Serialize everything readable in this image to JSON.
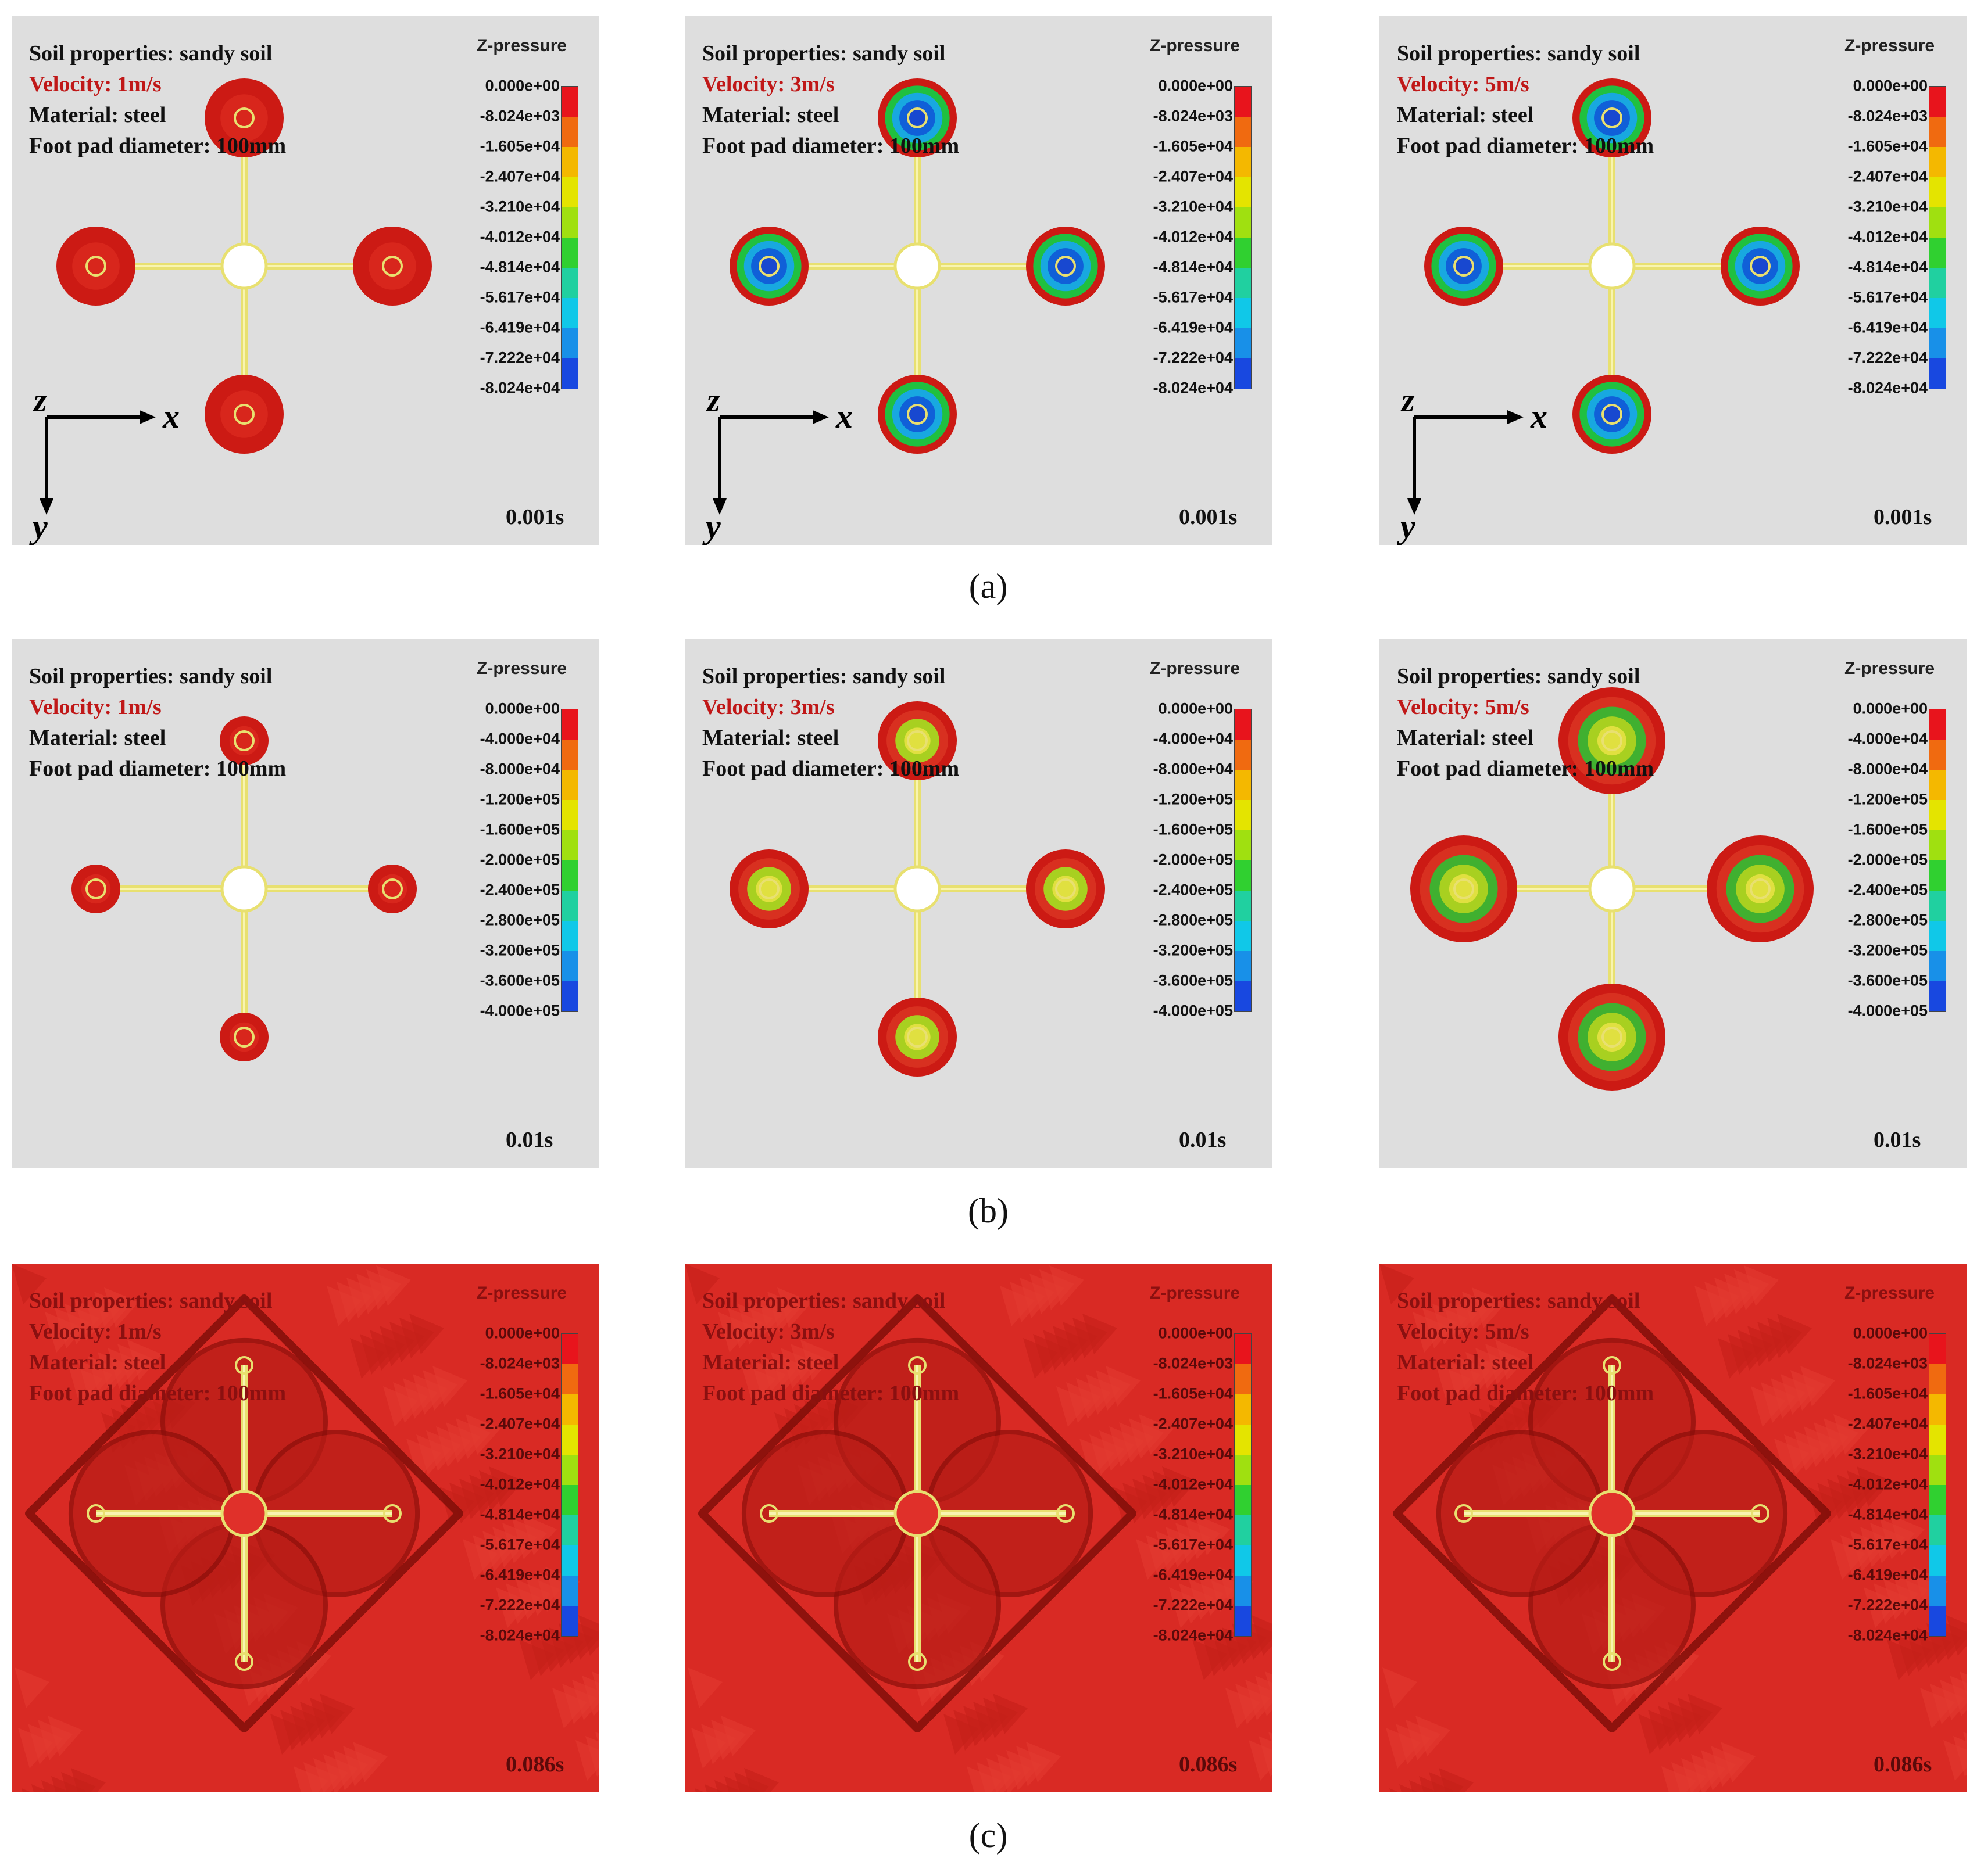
{
  "rows": [
    {
      "caption": "(a)",
      "caption_letter": "a",
      "panels": [
        {
          "soil": "Soil properties:  sandy soil",
          "velocity": "Velocity:  1m/s",
          "material": "Material:  steel",
          "diameter": "Foot pad diameter:  100mm",
          "time": "0.001s",
          "pad_style": "red",
          "has_axes": true
        },
        {
          "soil": "Soil properties:  sandy soil",
          "velocity": "Velocity:  3m/s",
          "material": "Material:  steel",
          "diameter": "Foot pad diameter:  100mm",
          "time": "0.001s",
          "pad_style": "blue",
          "has_axes": true
        },
        {
          "soil": "Soil properties:  sandy soil",
          "velocity": "Velocity:  5m/s",
          "material": "Material:  steel",
          "diameter": "Foot pad diameter:  100mm",
          "time": "0.001s",
          "pad_style": "blue",
          "has_axes": true
        }
      ],
      "legend": {
        "title": "Z-pressure",
        "labels": [
          "0.000e+00",
          "-8.024e+03",
          "-1.605e+04",
          "-2.407e+04",
          "-3.210e+04",
          "-4.012e+04",
          "-4.814e+04",
          "-5.617e+04",
          "-6.419e+04",
          "-7.222e+04",
          "-8.024e+04"
        ]
      }
    },
    {
      "caption": "(b)",
      "caption_letter": "b",
      "panels": [
        {
          "soil": "Soil properties:  sandy soil",
          "velocity": "Velocity:  1m/s",
          "material": "Material:  steel",
          "diameter": "Foot pad diameter:  100mm",
          "time": "0.01s",
          "pad_style": "red-small",
          "has_axes": false
        },
        {
          "soil": "Soil properties:  sandy soil",
          "velocity": "Velocity:  3m/s",
          "material": "Material:  steel",
          "diameter": "Foot pad diameter:  100mm",
          "time": "0.01s",
          "pad_style": "red-green",
          "has_axes": false
        },
        {
          "soil": "Soil properties:  sandy soil",
          "velocity": "Velocity:  5m/s",
          "material": "Material:  steel",
          "diameter": "Foot pad diameter:  100mm",
          "time": "0.01s",
          "pad_style": "red-green-large",
          "has_axes": false
        }
      ],
      "legend": {
        "title": "Z-pressure",
        "labels": [
          "0.000e+00",
          "-4.000e+04",
          "-8.000e+04",
          "-1.200e+05",
          "-1.600e+05",
          "-2.000e+05",
          "-2.400e+05",
          "-2.800e+05",
          "-3.200e+05",
          "-3.600e+05",
          "-4.000e+05"
        ]
      }
    },
    {
      "caption": "(c)",
      "caption_letter": "c",
      "panels": [
        {
          "soil": "Soil properties:  sandy soil",
          "velocity": "Velocity:  1m/s",
          "material": "Material:  steel",
          "diameter": "Foot pad diameter:  100mm",
          "time": "0.086s",
          "pad_style": "field",
          "has_axes": false
        },
        {
          "soil": "Soil properties:  sandy soil",
          "velocity": "Velocity:  3m/s",
          "material": "Material:  steel",
          "diameter": "Foot pad diameter:  100mm",
          "time": "0.086s",
          "pad_style": "field",
          "has_axes": false
        },
        {
          "soil": "Soil properties:  sandy soil",
          "velocity": "Velocity:  5m/s",
          "material": "Material:  steel",
          "diameter": "Foot pad diameter:  100mm",
          "time": "0.086s",
          "pad_style": "field",
          "has_axes": false
        }
      ],
      "legend": {
        "title": "Z-pressure",
        "labels": [
          "0.000e+00",
          "-8.024e+03",
          "-1.605e+04",
          "-2.407e+04",
          "-3.210e+04",
          "-4.012e+04",
          "-4.814e+04",
          "-5.617e+04",
          "-6.419e+04",
          "-7.222e+04",
          "-8.024e+04"
        ]
      }
    }
  ],
  "axes_labels": {
    "z": "z",
    "x": "x",
    "y": "y"
  },
  "colorbar": [
    "#e8141c",
    "#f06a10",
    "#f4b800",
    "#e4e400",
    "#a0e010",
    "#30d030",
    "#20d0a0",
    "#10c8e8",
    "#1890e8",
    "#1848e0",
    "#1010e0"
  ],
  "colors": {
    "pad_red": "#cc1a14",
    "frame_yellow": "#e8e070",
    "panel_gray": "#dedede",
    "field_red": "#d92a24"
  }
}
